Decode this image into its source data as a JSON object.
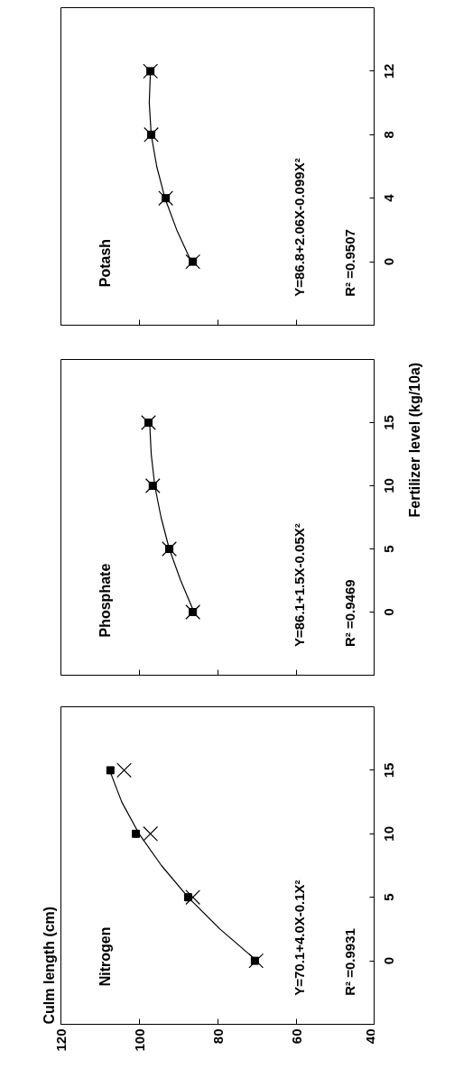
{
  "chart_data": [
    {
      "type": "scatter",
      "title": "Potash",
      "xlim": [
        120,
        40
      ],
      "xticks": [
        40,
        60,
        80,
        100,
        120
      ],
      "ylim": [
        -4,
        16
      ],
      "yticks": [
        0,
        4,
        8,
        12
      ],
      "tick_labels": "y",
      "annotations": [
        "Y=86.8+2.06X-0.099X²",
        "R² =0.9507"
      ],
      "series": [
        {
          "type": "line",
          "color": "#000000",
          "x": [
            86.8,
            90.5,
            93.5,
            95.6,
            97.0,
            97.5,
            97.2
          ],
          "values": [
            0,
            2,
            4,
            6,
            8,
            10,
            12
          ]
        },
        {
          "marker": "square",
          "color": "#000000",
          "x": [
            86.4,
            93.3,
            97.0,
            97.2
          ],
          "values": [
            0,
            4,
            8,
            12
          ]
        },
        {
          "marker": "cross",
          "color": "#000000",
          "x": [
            86.4,
            93.3,
            97.0,
            97.2
          ],
          "values": [
            0,
            4,
            8,
            12
          ]
        }
      ]
    },
    {
      "type": "scatter",
      "title": "Phosphate",
      "ylabel": "Fertilizer level (kg/10a)",
      "xlim": [
        120,
        40
      ],
      "xticks": [
        40,
        60,
        80,
        100,
        120
      ],
      "ylim": [
        -5,
        20
      ],
      "yticks": [
        0,
        5,
        10,
        15
      ],
      "tick_labels": "y",
      "annotations": [
        "Y=86.1+1.5X-0.05X²",
        "R² =0.9469"
      ],
      "series": [
        {
          "type": "line",
          "color": "#000000",
          "x": [
            86.1,
            89.5,
            92.4,
            94.5,
            96.1,
            97.0,
            97.4
          ],
          "values": [
            0,
            2.5,
            5,
            7.5,
            10,
            12.5,
            15
          ]
        },
        {
          "marker": "square",
          "color": "#000000",
          "x": [
            86.4,
            92.4,
            96.6,
            97.7
          ],
          "values": [
            0,
            5,
            10,
            15
          ]
        },
        {
          "marker": "cross",
          "color": "#000000",
          "x": [
            86.4,
            92.4,
            96.6,
            97.7
          ],
          "values": [
            0,
            5,
            10,
            15
          ]
        }
      ]
    },
    {
      "type": "scatter",
      "title": "Nitrogen",
      "xlim": [
        120,
        40
      ],
      "xticks": [
        40,
        60,
        80,
        100,
        120
      ],
      "ylim": [
        -5,
        20
      ],
      "yticks": [
        0,
        5,
        10,
        15
      ],
      "annotations": [
        "Y=70.1+4.0X-0.1X²",
        "R² =0.9931",
        "Culm length (cm)"
      ],
      "series": [
        {
          "type": "line",
          "color": "#000000",
          "x": [
            70.1,
            79.5,
            87.6,
            94.4,
            100.1,
            104.5,
            107.6
          ],
          "values": [
            0,
            2.5,
            5,
            7.5,
            10,
            12.5,
            15
          ]
        },
        {
          "marker": "square",
          "color": "#000000",
          "x": [
            70.6,
            87.6,
            100.9,
            107.4
          ],
          "values": [
            0,
            5,
            10,
            15
          ]
        },
        {
          "marker": "cross",
          "color": "#000000",
          "x": [
            70.3,
            86.4,
            97.2,
            103.9
          ],
          "values": [
            0,
            5,
            10,
            15
          ]
        }
      ]
    }
  ]
}
